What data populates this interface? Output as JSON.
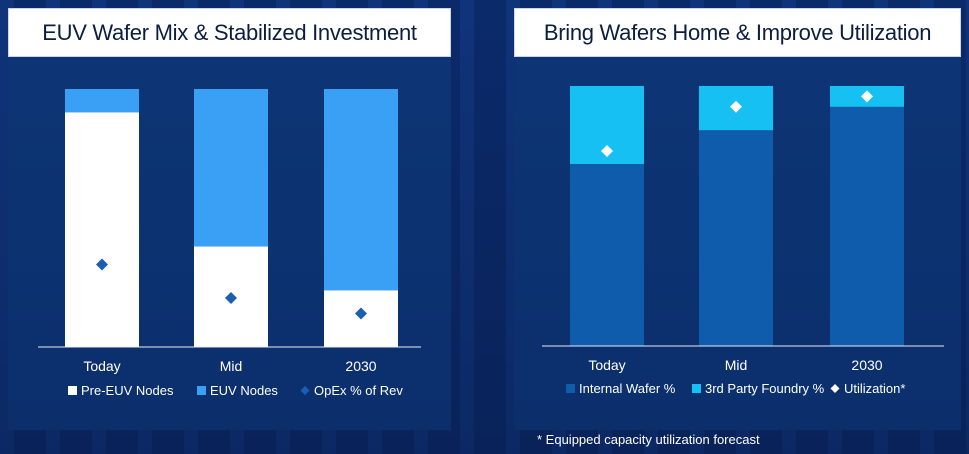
{
  "colors": {
    "pre_euv": "#ffffff",
    "euv": "#3aa0f5",
    "opex_marker": "#1a5fb4",
    "internal": "#0f5cad",
    "third_party": "#17c0f2",
    "utilization_marker": "#ffffff",
    "axis": "#e6ecf5",
    "label": "#ffffff"
  },
  "chart_data": [
    {
      "type": "bar",
      "stacked": true,
      "title": "EUV Wafer Mix & Stabilized Investment",
      "categories": [
        "Today",
        "Mid",
        "2030"
      ],
      "ylim": [
        0,
        100
      ],
      "series": [
        {
          "name": "Pre-EUV Nodes",
          "values": [
            91,
            39,
            22
          ],
          "color": "#ffffff"
        },
        {
          "name": "EUV Nodes",
          "values": [
            9,
            61,
            78
          ],
          "color": "#3aa0f5"
        }
      ],
      "markers": {
        "name": "OpEx % of Rev",
        "values": [
          32,
          19,
          13
        ],
        "color": "#1a5fb4"
      },
      "legend": [
        "Pre-EUV Nodes",
        "EUV Nodes",
        "OpEx % of Rev"
      ],
      "legend_position": "bottom"
    },
    {
      "type": "bar",
      "stacked": true,
      "title": "Bring Wafers Home & Improve Utilization",
      "categories": [
        "Today",
        "Mid",
        "2030"
      ],
      "ylim": [
        0,
        100
      ],
      "series": [
        {
          "name": "Internal Wafer %",
          "values": [
            70,
            83,
            92
          ],
          "color": "#0f5cad"
        },
        {
          "name": "3rd Party Foundry %",
          "values": [
            30,
            17,
            8
          ],
          "color": "#17c0f2"
        }
      ],
      "markers": {
        "name": "Utilization*",
        "values": [
          75,
          92,
          96
        ],
        "color": "#ffffff"
      },
      "legend": [
        "Internal Wafer %",
        "3rd Party Foundry %",
        "Utilization*"
      ],
      "legend_position": "bottom"
    }
  ],
  "footnote": "* Equipped capacity utilization forecast"
}
